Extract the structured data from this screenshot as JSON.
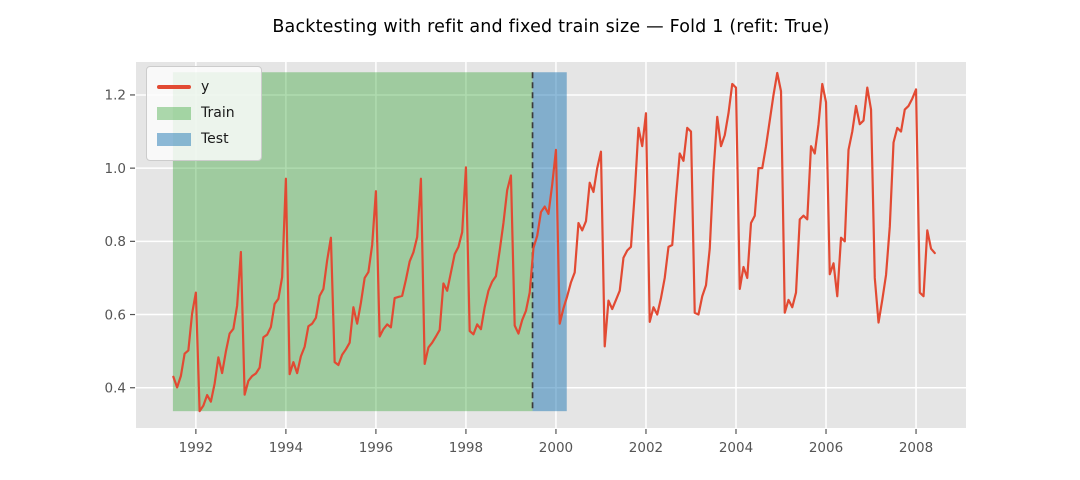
{
  "title": "Backtesting with refit and fixed train size — Fold 1 (refit: True)",
  "legend": {
    "items": [
      {
        "label": "y",
        "type": "line",
        "color": "#e24a33"
      },
      {
        "label": "Train",
        "type": "patch",
        "color": "rgba(44,160,44,0.38)"
      },
      {
        "label": "Test",
        "type": "patch",
        "color": "rgba(31,119,180,0.50)"
      }
    ]
  },
  "chart_data": {
    "type": "line",
    "title": "Backtesting with refit and fixed train size — Fold 1 (refit: True)",
    "xlabel": "",
    "ylabel": "",
    "series_name": "y",
    "x_start": 1991.5,
    "x_step_years": 0.0833333,
    "start_label": "1991-07",
    "freq": "monthly",
    "values": [
      0.43,
      0.401,
      0.432,
      0.493,
      0.502,
      0.603,
      0.66,
      0.336,
      0.351,
      0.38,
      0.362,
      0.411,
      0.483,
      0.44,
      0.499,
      0.548,
      0.561,
      0.624,
      0.771,
      0.381,
      0.419,
      0.432,
      0.439,
      0.455,
      0.538,
      0.545,
      0.566,
      0.629,
      0.643,
      0.702,
      0.971,
      0.437,
      0.47,
      0.44,
      0.486,
      0.512,
      0.568,
      0.575,
      0.591,
      0.651,
      0.67,
      0.748,
      0.81,
      0.47,
      0.462,
      0.49,
      0.505,
      0.523,
      0.62,
      0.575,
      0.632,
      0.7,
      0.716,
      0.79,
      0.937,
      0.54,
      0.56,
      0.573,
      0.565,
      0.645,
      0.648,
      0.651,
      0.695,
      0.745,
      0.77,
      0.812,
      0.971,
      0.465,
      0.51,
      0.523,
      0.54,
      0.558,
      0.685,
      0.665,
      0.715,
      0.765,
      0.785,
      0.825,
      1.002,
      0.555,
      0.546,
      0.573,
      0.56,
      0.62,
      0.665,
      0.69,
      0.705,
      0.775,
      0.85,
      0.94,
      0.98,
      0.57,
      0.548,
      0.585,
      0.61,
      0.66,
      0.782,
      0.815,
      0.88,
      0.895,
      0.875,
      0.955,
      1.05,
      0.575,
      0.617,
      0.65,
      0.688,
      0.715,
      0.85,
      0.83,
      0.855,
      0.96,
      0.935,
      1.0,
      1.045,
      0.513,
      0.638,
      0.615,
      0.64,
      0.665,
      0.755,
      0.775,
      0.785,
      0.93,
      1.11,
      1.06,
      1.15,
      0.58,
      0.62,
      0.6,
      0.645,
      0.7,
      0.785,
      0.79,
      0.92,
      1.04,
      1.02,
      1.11,
      1.1,
      0.605,
      0.6,
      0.65,
      0.68,
      0.78,
      0.99,
      1.14,
      1.06,
      1.09,
      1.15,
      1.23,
      1.22,
      0.67,
      0.73,
      0.7,
      0.85,
      0.87,
      1.0,
      1.0,
      1.06,
      1.13,
      1.2,
      1.26,
      1.21,
      0.605,
      0.64,
      0.62,
      0.66,
      0.86,
      0.87,
      0.86,
      1.06,
      1.04,
      1.12,
      1.23,
      1.18,
      0.71,
      0.74,
      0.65,
      0.81,
      0.8,
      1.05,
      1.1,
      1.17,
      1.12,
      1.13,
      1.22,
      1.16,
      0.7,
      0.578,
      0.64,
      0.708,
      0.84,
      1.07,
      1.11,
      1.1,
      1.16,
      1.17,
      1.19,
      1.215,
      0.66,
      0.65,
      0.83,
      0.78,
      0.768
    ],
    "xlim": [
      1990.67,
      2009.11
    ],
    "ylim": [
      0.29,
      1.29
    ],
    "x_ticks": [
      1992,
      1994,
      1996,
      1998,
      2000,
      2002,
      2004,
      2006,
      2008
    ],
    "y_ticks": [
      "0.4",
      "0.6",
      "0.8",
      "1.0",
      "1.2"
    ],
    "grid": "on",
    "legend_position": "upper left",
    "train_span": {
      "x0": 1991.49,
      "x1": 1999.48,
      "y0": 0.336,
      "y1": 1.262,
      "label": "Train"
    },
    "test_span": {
      "x0": 1999.48,
      "x1": 2000.24,
      "y0": 0.336,
      "y1": 1.262,
      "label": "Test"
    },
    "separator_x": 1999.48,
    "colors": {
      "line": "#e24a33",
      "train_fill": "rgba(44,160,44,0.38)",
      "test_fill": "rgba(31,119,180,0.50)",
      "separator": "#3a3a3a",
      "plot_bg": "#e5e5e5",
      "grid": "#ffffff",
      "tick": "#555555"
    }
  }
}
